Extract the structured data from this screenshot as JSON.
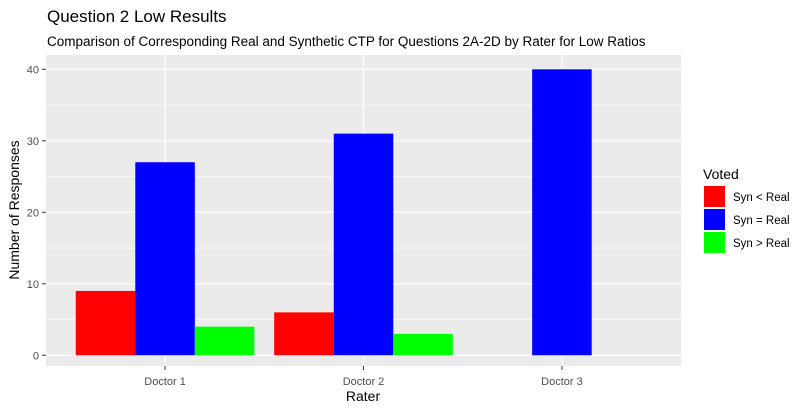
{
  "chart_data": {
    "type": "bar",
    "title": "Question 2 Low Results",
    "subtitle": "Comparison of Corresponding Real and Synthetic CTP for Questions 2A-2D by Rater for Low Ratios",
    "xlabel": "Rater",
    "ylabel": "Number of Responses",
    "categories": [
      "Doctor 1",
      "Doctor 2",
      "Doctor 3"
    ],
    "ylim": [
      -1.5,
      42
    ],
    "yticks": [
      0,
      10,
      20,
      30,
      40
    ],
    "grid": true,
    "legend": {
      "title": "Voted",
      "placement": "right"
    },
    "series": [
      {
        "name": "Syn < Real",
        "color": "#ff0000",
        "values": [
          9,
          6,
          0
        ]
      },
      {
        "name": "Syn = Real",
        "color": "#0000ff",
        "values": [
          27,
          31,
          40
        ]
      },
      {
        "name": "Syn > Real",
        "color": "#00ff00",
        "values": [
          4,
          3,
          0
        ]
      }
    ]
  }
}
